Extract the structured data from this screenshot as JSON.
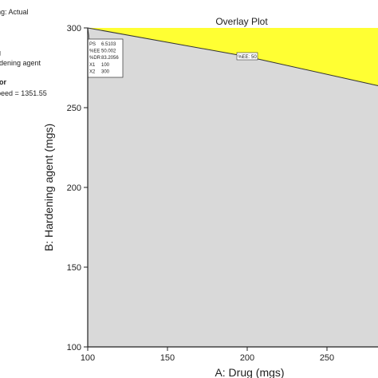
{
  "sidebar": {
    "design_space_label": "ng: Actual",
    "factors_label": "g",
    "factor_b_name": "rdening agent",
    "other_factor_heading": "tor",
    "other_factor_value": "peed = 1351.55"
  },
  "chart_data": {
    "type": "area",
    "title": "Overlay Plot",
    "xlabel": "A: Drug (mgs)",
    "ylabel": "B: Hardening agent (mgs)",
    "xlim": [
      100,
      300
    ],
    "ylim": [
      100,
      300
    ],
    "x_ticks": [
      "100",
      "150",
      "200",
      "250"
    ],
    "y_ticks": [
      "100",
      "150",
      "200",
      "250",
      "300"
    ],
    "grid": false,
    "regions": [
      {
        "name": "",
        "color": "#d9d9d9",
        "meaning": "feasible"
      },
      {
        "name": "",
        "color": "#ffff33",
        "meaning": "not feasible"
      }
    ],
    "contour": {
      "label": "%EE: 50",
      "points": [
        [
          100,
          300
        ],
        [
          200,
          282
        ],
        [
          281,
          264
        ]
      ],
      "label_at": [
        200,
        282
      ]
    },
    "flag": {
      "point": [
        100,
        300
      ],
      "lines": [
        {
          "key": "PS",
          "value": "6.5103"
        },
        {
          "key": "%EE",
          "value": "50.002"
        },
        {
          "key": "%DR",
          "value": "83.2056"
        },
        {
          "key": "X1",
          "value": "100"
        },
        {
          "key": "X2",
          "value": "300"
        }
      ]
    }
  },
  "colors": {
    "feasible": "#d9d9d9",
    "infeasible": "#ffff33",
    "axis": "#222222"
  }
}
